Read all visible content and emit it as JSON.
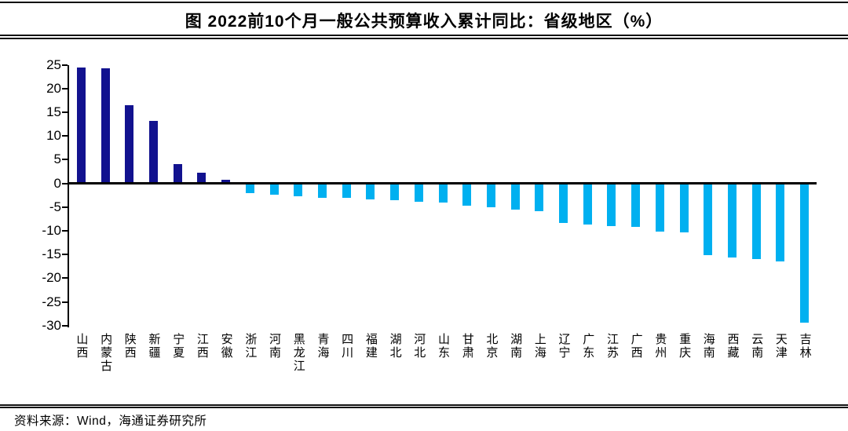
{
  "header": {
    "title": "图  2022前10个月一般公共预算收入累计同比：省级地区（%）"
  },
  "footer": {
    "source": "资料来源：Wind，海通证券研究所"
  },
  "chart_data": {
    "type": "bar",
    "title": "2022前10个月一般公共预算收入累计同比：省级地区（%）",
    "categories": [
      "山西",
      "内蒙古",
      "陕西",
      "新疆",
      "宁夏",
      "江西",
      "安徽",
      "浙江",
      "河南",
      "黑龙江",
      "青海",
      "四川",
      "福建",
      "湖北",
      "河北",
      "山东",
      "甘肃",
      "北京",
      "湖南",
      "上海",
      "辽宁",
      "广东",
      "江苏",
      "广西",
      "贵州",
      "重庆",
      "海南",
      "西藏",
      "云南",
      "天津",
      "吉林"
    ],
    "values": [
      24.4,
      24.3,
      16.4,
      13.2,
      4.0,
      2.2,
      0.7,
      -2.1,
      -2.4,
      -2.8,
      -3.1,
      -3.1,
      -3.4,
      -3.5,
      -3.9,
      -4.0,
      -4.7,
      -5.1,
      -5.5,
      -5.9,
      -8.3,
      -8.7,
      -9.1,
      -9.2,
      -10.1,
      -10.4,
      -15.1,
      -15.7,
      -15.9,
      -16.4,
      -29.4
    ],
    "xlabel": "",
    "ylabel": "",
    "ylim": [
      -30,
      25
    ],
    "yticks": [
      25,
      20,
      15,
      10,
      5,
      0,
      -5,
      -10,
      -15,
      -20,
      -25,
      -30
    ],
    "grid": false,
    "legend": null,
    "colors": {
      "positive_bar": "#12128f",
      "negative_bar": "#00b0f0",
      "axis": "#000000"
    }
  }
}
